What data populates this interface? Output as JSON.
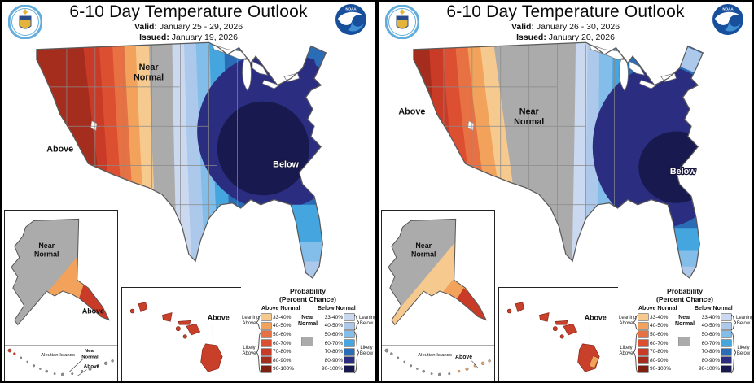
{
  "shared": {
    "title": "6-10 Day Temperature Outlook",
    "valid_label": "Valid:",
    "issued_label": "Issued:",
    "noaa_text": "NOAA",
    "legend": {
      "title1": "Probability",
      "title2": "(Percent Chance)",
      "above_header": "Above Normal",
      "near_header": "Near Normal",
      "below_header": "Below Normal",
      "ranges": [
        "33-40%",
        "40-50%",
        "50-60%",
        "60-70%",
        "70-80%",
        "80-90%",
        "90-100%"
      ],
      "above_colors": [
        "#F6C98F",
        "#F2A25B",
        "#E87144",
        "#DD4F31",
        "#C93B27",
        "#A52D1E",
        "#7E1F12"
      ],
      "below_colors": [
        "#CBD9F0",
        "#ACC8EA",
        "#82BEE9",
        "#45A5DE",
        "#2A6CB5",
        "#2B2D80",
        "#181A4F"
      ],
      "near_color": "#ABABAB",
      "leaning_above": "Leaning Above",
      "likely_above": "Likely Above",
      "leaning_below": "Leaning Below",
      "likely_below": "Likely Below"
    }
  },
  "panels": [
    {
      "valid": "January 25 - 29, 2026",
      "issued": "January 19, 2026",
      "map_labels": {
        "above": "Above",
        "near": "Near Normal",
        "below": "Below"
      },
      "alaska": {
        "near": "Near Normal",
        "above": "Above"
      },
      "aleutians": {
        "title": "Aleutian Islands",
        "labels": [
          "Near Normal",
          "Above"
        ]
      },
      "hawaii": {
        "above": "Above"
      }
    },
    {
      "valid": "January 26 - 30, 2026",
      "issued": "January 20, 2026",
      "map_labels": {
        "above": "Above",
        "near": "Near Normal",
        "below": "Below"
      },
      "alaska": {
        "near": "Near Normal"
      },
      "aleutians": {
        "title": "Aleutian Islands",
        "labels": [
          "Above"
        ]
      },
      "hawaii": {
        "above": "Above"
      }
    }
  ]
}
